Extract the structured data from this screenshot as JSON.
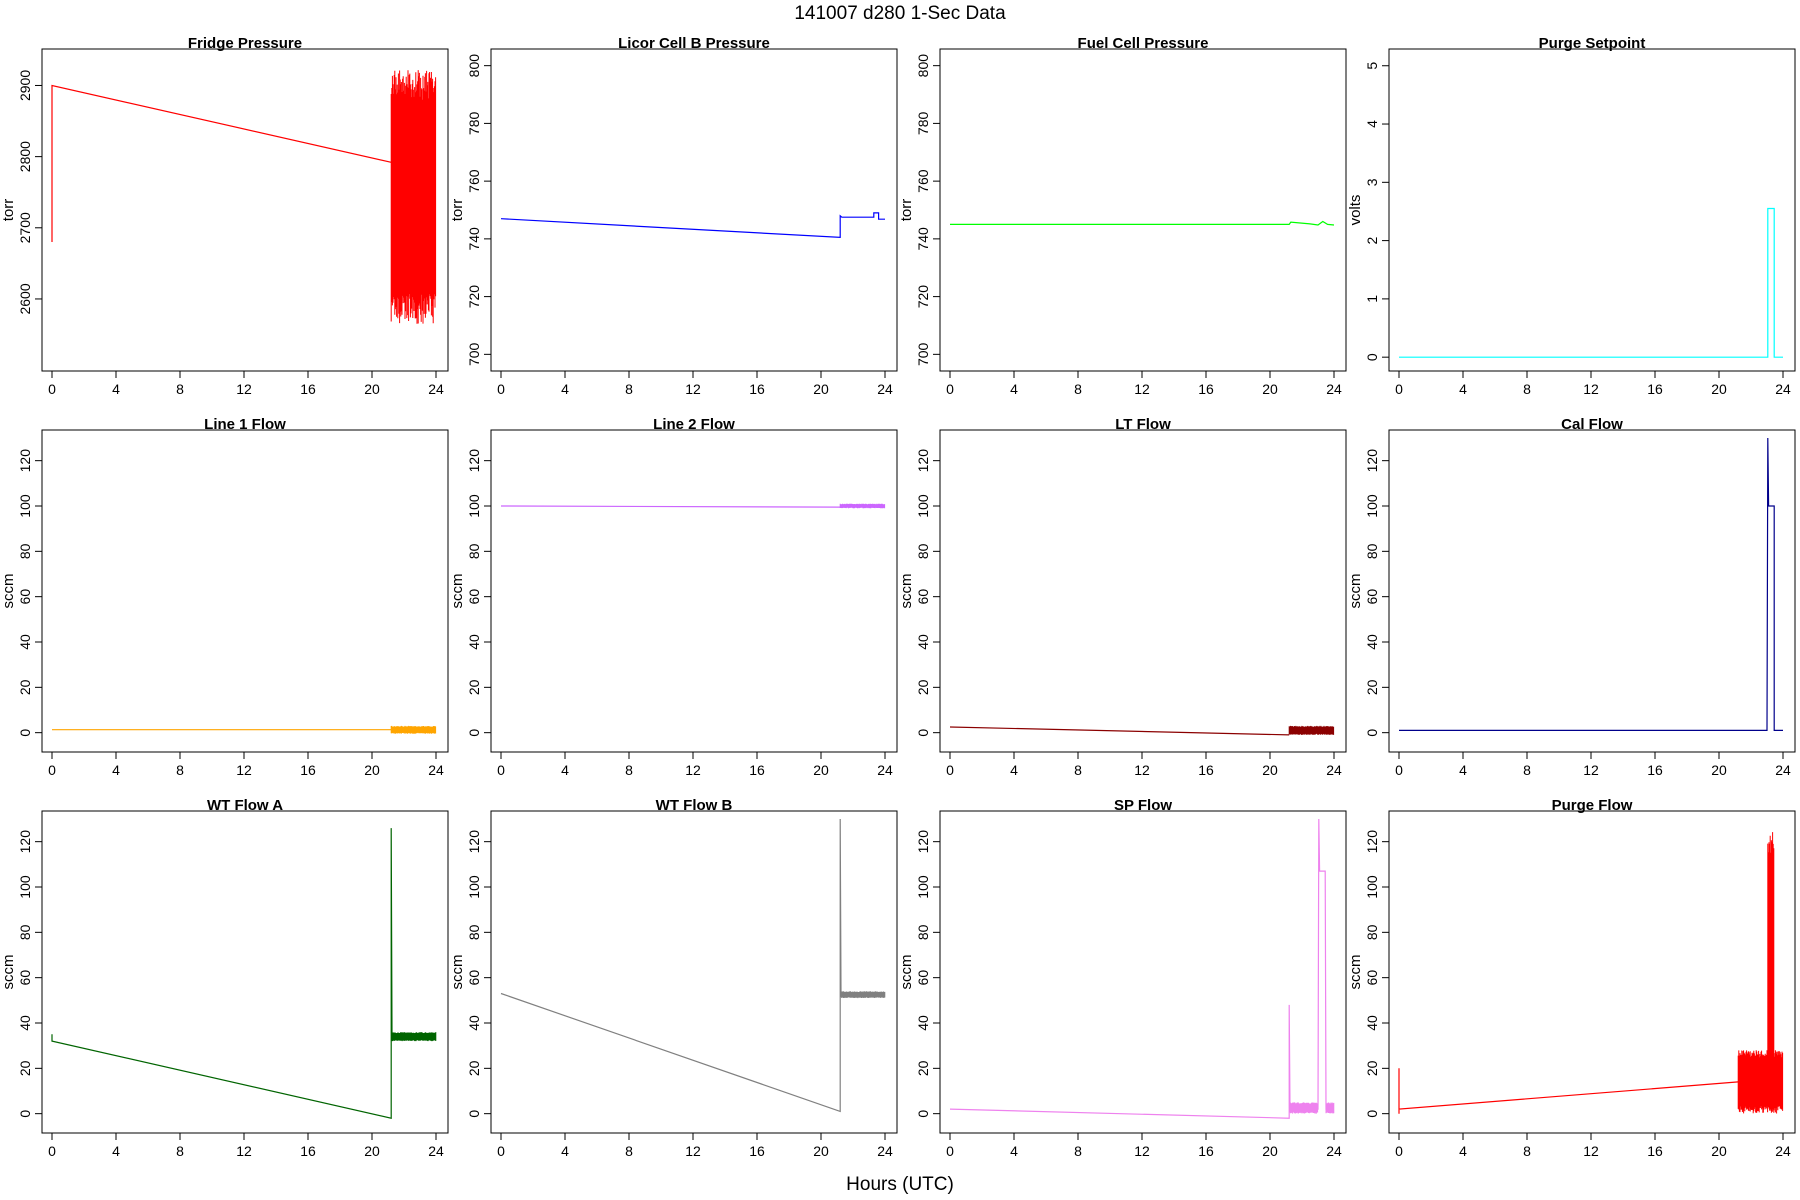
{
  "figure": {
    "title": "141007   d280   1-Sec Data",
    "xlabel": "Hours (UTC)"
  },
  "chart_data": [
    {
      "type": "line",
      "title": "Fridge Pressure",
      "ylabel": "torr",
      "color": "#ff0000",
      "xlim": [
        0,
        24
      ],
      "ylim": [
        2510,
        2940
      ],
      "xticks": [
        0,
        4,
        8,
        12,
        16,
        20,
        24
      ],
      "yticks": [
        2600,
        2700,
        2800,
        2900
      ],
      "series": [
        {
          "x": [
            0,
            0,
            21.2
          ],
          "y": [
            2680,
            2900,
            2792
          ]
        }
      ],
      "noise": [
        {
          "x0": 21.2,
          "x1": 24,
          "ylo": 2565,
          "yhi": 2922
        }
      ]
    },
    {
      "type": "line",
      "title": "Licor Cell B Pressure",
      "ylabel": "torr",
      "color": "#0000ff",
      "xlim": [
        0,
        24
      ],
      "ylim": [
        697,
        803
      ],
      "xticks": [
        0,
        4,
        8,
        12,
        16,
        20,
        24
      ],
      "yticks": [
        700,
        720,
        740,
        760,
        780,
        800
      ],
      "series": [
        {
          "x": [
            0,
            21.2,
            21.2,
            21.3,
            23.3,
            23.3,
            23.6,
            23.6,
            24
          ],
          "y": [
            747,
            740.5,
            748,
            747.5,
            747.5,
            749,
            749,
            746.8,
            746.8
          ]
        }
      ],
      "noise": []
    },
    {
      "type": "line",
      "title": "Fuel Cell Pressure",
      "ylabel": "torr",
      "color": "#00ff00",
      "xlim": [
        0,
        24
      ],
      "ylim": [
        697,
        803
      ],
      "xticks": [
        0,
        4,
        8,
        12,
        16,
        20,
        24
      ],
      "yticks": [
        700,
        720,
        740,
        760,
        780,
        800
      ],
      "series": [
        {
          "x": [
            0,
            21.2,
            21.3,
            22.5,
            23.0,
            23.3,
            23.6,
            24
          ],
          "y": [
            745,
            745,
            745.8,
            745.2,
            744.8,
            746,
            745,
            744.8
          ]
        }
      ],
      "noise": []
    },
    {
      "type": "line",
      "title": "Purge Setpoint",
      "ylabel": "volts",
      "color": "#00ffff",
      "xlim": [
        0,
        24
      ],
      "ylim": [
        -0.1,
        5.15
      ],
      "xticks": [
        0,
        4,
        8,
        12,
        16,
        20,
        24
      ],
      "yticks": [
        0,
        1,
        2,
        3,
        4,
        5
      ],
      "series": [
        {
          "x": [
            0,
            23.05,
            23.05,
            23.45,
            23.45,
            24
          ],
          "y": [
            0,
            0,
            2.55,
            2.55,
            0,
            0
          ]
        }
      ],
      "noise": []
    },
    {
      "type": "line",
      "title": "Line 1 Flow",
      "ylabel": "sccm",
      "color": "#ffa500",
      "xlim": [
        0,
        24
      ],
      "ylim": [
        -5,
        130
      ],
      "xticks": [
        0,
        4,
        8,
        12,
        16,
        20,
        24
      ],
      "yticks": [
        0,
        20,
        40,
        60,
        80,
        100,
        120
      ],
      "series": [
        {
          "x": [
            0,
            21.2
          ],
          "y": [
            1.3,
            1.3
          ]
        }
      ],
      "noise": [
        {
          "x0": 21.2,
          "x1": 24,
          "ylo": -0.5,
          "yhi": 3
        }
      ]
    },
    {
      "type": "line",
      "title": "Line 2 Flow",
      "ylabel": "sccm",
      "color": "#cc66ff",
      "xlim": [
        0,
        24
      ],
      "ylim": [
        -5,
        130
      ],
      "xticks": [
        0,
        4,
        8,
        12,
        16,
        20,
        24
      ],
      "yticks": [
        0,
        20,
        40,
        60,
        80,
        100,
        120
      ],
      "series": [
        {
          "x": [
            0,
            21.2
          ],
          "y": [
            100,
            99.5
          ]
        }
      ],
      "noise": [
        {
          "x0": 21.2,
          "x1": 24,
          "ylo": 99,
          "yhi": 101
        }
      ]
    },
    {
      "type": "line",
      "title": "LT Flow",
      "ylabel": "sccm",
      "color": "#8b0000",
      "xlim": [
        0,
        24
      ],
      "ylim": [
        -5,
        130
      ],
      "xticks": [
        0,
        4,
        8,
        12,
        16,
        20,
        24
      ],
      "yticks": [
        0,
        20,
        40,
        60,
        80,
        100,
        120
      ],
      "series": [
        {
          "x": [
            0,
            21.2
          ],
          "y": [
            2.5,
            -1
          ]
        }
      ],
      "noise": [
        {
          "x0": 21.2,
          "x1": 24,
          "ylo": -1,
          "yhi": 3
        }
      ]
    },
    {
      "type": "line",
      "title": "Cal Flow",
      "ylabel": "sccm",
      "color": "#00008b",
      "xlim": [
        0,
        24
      ],
      "ylim": [
        -5,
        130
      ],
      "xticks": [
        0,
        4,
        8,
        12,
        16,
        20,
        24
      ],
      "yticks": [
        0,
        20,
        40,
        60,
        80,
        100,
        120
      ],
      "series": [
        {
          "x": [
            0,
            23.0,
            23.05,
            23.1,
            23.1,
            23.45,
            23.45,
            24
          ],
          "y": [
            1,
            1,
            130,
            100,
            100,
            100,
            1,
            1
          ]
        }
      ],
      "noise": []
    },
    {
      "type": "line",
      "title": "WT Flow A",
      "ylabel": "sccm",
      "color": "#006400",
      "xlim": [
        0,
        24
      ],
      "ylim": [
        -5,
        130
      ],
      "xticks": [
        0,
        4,
        8,
        12,
        16,
        20,
        24
      ],
      "yticks": [
        0,
        20,
        40,
        60,
        80,
        100,
        120
      ],
      "series": [
        {
          "x": [
            0,
            0,
            21.2,
            21.2,
            21.25
          ],
          "y": [
            35,
            32,
            -2,
            126,
            34
          ]
        }
      ],
      "noise": [
        {
          "x0": 21.25,
          "x1": 24,
          "ylo": 32,
          "yhi": 36
        }
      ]
    },
    {
      "type": "line",
      "title": "WT Flow B",
      "ylabel": "sccm",
      "color": "#808080",
      "xlim": [
        0,
        24
      ],
      "ylim": [
        -5,
        130
      ],
      "xticks": [
        0,
        4,
        8,
        12,
        16,
        20,
        24
      ],
      "yticks": [
        0,
        20,
        40,
        60,
        80,
        100,
        120
      ],
      "series": [
        {
          "x": [
            0,
            21.2,
            21.2,
            21.25
          ],
          "y": [
            53,
            1,
            130,
            53
          ]
        }
      ],
      "noise": [
        {
          "x0": 21.25,
          "x1": 24,
          "ylo": 51,
          "yhi": 54
        }
      ]
    },
    {
      "type": "line",
      "title": "SP Flow",
      "ylabel": "sccm",
      "color": "#ee82ee",
      "xlim": [
        0,
        24
      ],
      "ylim": [
        -5,
        130
      ],
      "xticks": [
        0,
        4,
        8,
        12,
        16,
        20,
        24
      ],
      "yticks": [
        0,
        20,
        40,
        60,
        80,
        100,
        120
      ],
      "series": [
        {
          "x": [
            0,
            21.2,
            21.2,
            21.25,
            23.0,
            23.05,
            23.1,
            23.45,
            23.5,
            24
          ],
          "y": [
            2,
            -2,
            48,
            2,
            2,
            130,
            107,
            107,
            2,
            2
          ]
        }
      ],
      "noise": [
        {
          "x0": 21.25,
          "x1": 23.0,
          "ylo": 0,
          "yhi": 5
        },
        {
          "x0": 23.5,
          "x1": 24,
          "ylo": 0,
          "yhi": 5
        }
      ]
    },
    {
      "type": "line",
      "title": "Purge Flow",
      "ylabel": "sccm",
      "color": "#ff0000",
      "xlim": [
        0,
        24
      ],
      "ylim": [
        -5,
        130
      ],
      "xticks": [
        0,
        4,
        8,
        12,
        16,
        20,
        24
      ],
      "yticks": [
        0,
        20,
        40,
        60,
        80,
        100,
        120
      ],
      "series": [
        {
          "x": [
            0,
            0,
            0,
            21.2
          ],
          "y": [
            0,
            20,
            2,
            14
          ]
        }
      ],
      "noise": [
        {
          "x0": 21.2,
          "x1": 24,
          "ylo": 0,
          "yhi": 28
        },
        {
          "x0": 23.05,
          "x1": 23.45,
          "ylo": 0,
          "yhi": 128
        }
      ]
    }
  ]
}
